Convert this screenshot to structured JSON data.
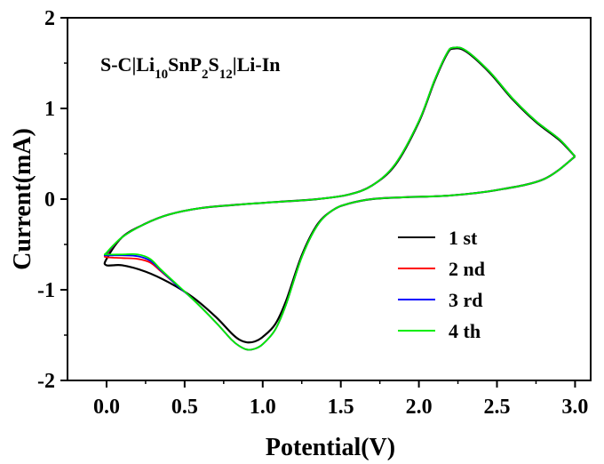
{
  "chart_data": {
    "type": "line",
    "title": "",
    "annotation": "S-C|Li10SnP2S12|Li-In",
    "annotation_parts": [
      {
        "text": "S-C|Li",
        "sub": false
      },
      {
        "text": "10",
        "sub": true
      },
      {
        "text": "SnP",
        "sub": false
      },
      {
        "text": "2",
        "sub": true
      },
      {
        "text": "S",
        "sub": false
      },
      {
        "text": "12",
        "sub": true
      },
      {
        "text": "|Li-In",
        "sub": false
      }
    ],
    "xlabel": "Potential(V)",
    "ylabel": "Current(mA)",
    "xlim": [
      -0.25,
      3.1
    ],
    "ylim": [
      -2,
      2
    ],
    "xticks": [
      0.0,
      0.5,
      1.0,
      1.5,
      2.0,
      2.5,
      3.0
    ],
    "xtick_labels": [
      "0.0",
      "0.5",
      "1.0",
      "1.5",
      "2.0",
      "2.5",
      "3.0"
    ],
    "yticks": [
      -2,
      -1,
      0,
      1,
      2
    ],
    "ytick_labels": [
      "-2",
      "-1",
      "0",
      "1",
      "2"
    ],
    "grid": false,
    "legend_position": "lower-right",
    "series": [
      {
        "name": "1 st",
        "color": "#000000",
        "cathodic": [
          [
            3.0,
            0.47
          ],
          [
            2.8,
            0.22
          ],
          [
            2.5,
            0.1
          ],
          [
            2.2,
            0.04
          ],
          [
            1.9,
            0.02
          ],
          [
            1.7,
            0.0
          ],
          [
            1.55,
            -0.05
          ],
          [
            1.45,
            -0.12
          ],
          [
            1.35,
            -0.28
          ],
          [
            1.25,
            -0.62
          ],
          [
            1.15,
            -1.12
          ],
          [
            1.08,
            -1.38
          ],
          [
            1.0,
            -1.52
          ],
          [
            0.95,
            -1.57
          ],
          [
            0.9,
            -1.58
          ],
          [
            0.85,
            -1.55
          ],
          [
            0.8,
            -1.48
          ],
          [
            0.7,
            -1.3
          ],
          [
            0.55,
            -1.08
          ],
          [
            0.4,
            -0.92
          ],
          [
            0.25,
            -0.8
          ],
          [
            0.1,
            -0.73
          ],
          [
            0.0,
            -0.73
          ]
        ],
        "anodic": [
          [
            0.0,
            -0.73
          ],
          [
            0.0,
            -0.66
          ],
          [
            0.1,
            -0.42
          ],
          [
            0.25,
            -0.27
          ],
          [
            0.4,
            -0.17
          ],
          [
            0.6,
            -0.1
          ],
          [
            0.85,
            -0.06
          ],
          [
            1.1,
            -0.03
          ],
          [
            1.35,
            0.0
          ],
          [
            1.55,
            0.05
          ],
          [
            1.7,
            0.15
          ],
          [
            1.85,
            0.38
          ],
          [
            2.0,
            0.85
          ],
          [
            2.1,
            1.3
          ],
          [
            2.18,
            1.6
          ],
          [
            2.22,
            1.66
          ],
          [
            2.3,
            1.63
          ],
          [
            2.45,
            1.4
          ],
          [
            2.6,
            1.1
          ],
          [
            2.75,
            0.85
          ],
          [
            2.9,
            0.65
          ],
          [
            3.0,
            0.47
          ]
        ]
      },
      {
        "name": "2 nd",
        "color": "#ff0000",
        "cathodic": [
          [
            3.0,
            0.47
          ],
          [
            2.8,
            0.22
          ],
          [
            2.5,
            0.1
          ],
          [
            2.2,
            0.04
          ],
          [
            1.9,
            0.02
          ],
          [
            1.7,
            0.0
          ],
          [
            1.55,
            -0.05
          ],
          [
            1.45,
            -0.12
          ],
          [
            1.35,
            -0.29
          ],
          [
            1.25,
            -0.64
          ],
          [
            1.15,
            -1.16
          ],
          [
            1.08,
            -1.44
          ],
          [
            1.0,
            -1.6
          ],
          [
            0.95,
            -1.65
          ],
          [
            0.9,
            -1.66
          ],
          [
            0.85,
            -1.62
          ],
          [
            0.8,
            -1.55
          ],
          [
            0.7,
            -1.36
          ],
          [
            0.55,
            -1.1
          ],
          [
            0.45,
            -0.95
          ],
          [
            0.35,
            -0.8
          ],
          [
            0.28,
            -0.7
          ],
          [
            0.2,
            -0.66
          ],
          [
            0.1,
            -0.65
          ],
          [
            0.0,
            -0.64
          ]
        ],
        "anodic": [
          [
            0.0,
            -0.64
          ],
          [
            0.0,
            -0.61
          ],
          [
            0.1,
            -0.42
          ],
          [
            0.25,
            -0.27
          ],
          [
            0.4,
            -0.17
          ],
          [
            0.6,
            -0.1
          ],
          [
            0.85,
            -0.06
          ],
          [
            1.1,
            -0.03
          ],
          [
            1.35,
            0.0
          ],
          [
            1.55,
            0.05
          ],
          [
            1.7,
            0.15
          ],
          [
            1.85,
            0.39
          ],
          [
            2.0,
            0.86
          ],
          [
            2.1,
            1.31
          ],
          [
            2.18,
            1.61
          ],
          [
            2.22,
            1.67
          ],
          [
            2.3,
            1.64
          ],
          [
            2.45,
            1.41
          ],
          [
            2.6,
            1.11
          ],
          [
            2.75,
            0.86
          ],
          [
            2.9,
            0.66
          ],
          [
            3.0,
            0.47
          ]
        ]
      },
      {
        "name": "3 rd",
        "color": "#0000ff",
        "cathodic": [
          [
            3.0,
            0.47
          ],
          [
            2.8,
            0.22
          ],
          [
            2.5,
            0.1
          ],
          [
            2.2,
            0.04
          ],
          [
            1.9,
            0.02
          ],
          [
            1.7,
            0.0
          ],
          [
            1.55,
            -0.05
          ],
          [
            1.45,
            -0.12
          ],
          [
            1.35,
            -0.29
          ],
          [
            1.25,
            -0.64
          ],
          [
            1.15,
            -1.16
          ],
          [
            1.08,
            -1.44
          ],
          [
            1.0,
            -1.6
          ],
          [
            0.95,
            -1.65
          ],
          [
            0.9,
            -1.66
          ],
          [
            0.85,
            -1.62
          ],
          [
            0.8,
            -1.55
          ],
          [
            0.7,
            -1.36
          ],
          [
            0.55,
            -1.1
          ],
          [
            0.45,
            -0.95
          ],
          [
            0.35,
            -0.79
          ],
          [
            0.28,
            -0.68
          ],
          [
            0.2,
            -0.63
          ],
          [
            0.1,
            -0.62
          ],
          [
            0.0,
            -0.62
          ]
        ],
        "anodic": [
          [
            0.0,
            -0.62
          ],
          [
            0.0,
            -0.6
          ],
          [
            0.1,
            -0.42
          ],
          [
            0.25,
            -0.27
          ],
          [
            0.4,
            -0.17
          ],
          [
            0.6,
            -0.1
          ],
          [
            0.85,
            -0.06
          ],
          [
            1.1,
            -0.03
          ],
          [
            1.35,
            0.0
          ],
          [
            1.55,
            0.05
          ],
          [
            1.7,
            0.15
          ],
          [
            1.85,
            0.39
          ],
          [
            2.0,
            0.86
          ],
          [
            2.1,
            1.31
          ],
          [
            2.18,
            1.61
          ],
          [
            2.22,
            1.67
          ],
          [
            2.3,
            1.64
          ],
          [
            2.45,
            1.41
          ],
          [
            2.6,
            1.11
          ],
          [
            2.75,
            0.86
          ],
          [
            2.9,
            0.66
          ],
          [
            3.0,
            0.47
          ]
        ]
      },
      {
        "name": "4 th",
        "color": "#00ee00",
        "cathodic": [
          [
            3.0,
            0.47
          ],
          [
            2.8,
            0.22
          ],
          [
            2.5,
            0.1
          ],
          [
            2.2,
            0.04
          ],
          [
            1.9,
            0.02
          ],
          [
            1.7,
            0.0
          ],
          [
            1.55,
            -0.05
          ],
          [
            1.45,
            -0.12
          ],
          [
            1.35,
            -0.29
          ],
          [
            1.25,
            -0.64
          ],
          [
            1.15,
            -1.16
          ],
          [
            1.08,
            -1.44
          ],
          [
            1.0,
            -1.6
          ],
          [
            0.95,
            -1.65
          ],
          [
            0.9,
            -1.66
          ],
          [
            0.85,
            -1.62
          ],
          [
            0.8,
            -1.55
          ],
          [
            0.7,
            -1.36
          ],
          [
            0.55,
            -1.1
          ],
          [
            0.45,
            -0.94
          ],
          [
            0.35,
            -0.78
          ],
          [
            0.28,
            -0.66
          ],
          [
            0.2,
            -0.61
          ],
          [
            0.1,
            -0.61
          ],
          [
            0.0,
            -0.61
          ]
        ],
        "anodic": [
          [
            0.0,
            -0.61
          ],
          [
            0.0,
            -0.59
          ],
          [
            0.1,
            -0.42
          ],
          [
            0.25,
            -0.27
          ],
          [
            0.4,
            -0.17
          ],
          [
            0.6,
            -0.1
          ],
          [
            0.85,
            -0.06
          ],
          [
            1.1,
            -0.03
          ],
          [
            1.35,
            0.0
          ],
          [
            1.55,
            0.05
          ],
          [
            1.7,
            0.15
          ],
          [
            1.85,
            0.39
          ],
          [
            2.0,
            0.86
          ],
          [
            2.1,
            1.31
          ],
          [
            2.18,
            1.61
          ],
          [
            2.22,
            1.67
          ],
          [
            2.3,
            1.64
          ],
          [
            2.45,
            1.41
          ],
          [
            2.6,
            1.11
          ],
          [
            2.75,
            0.86
          ],
          [
            2.9,
            0.66
          ],
          [
            3.0,
            0.47
          ]
        ]
      }
    ]
  }
}
